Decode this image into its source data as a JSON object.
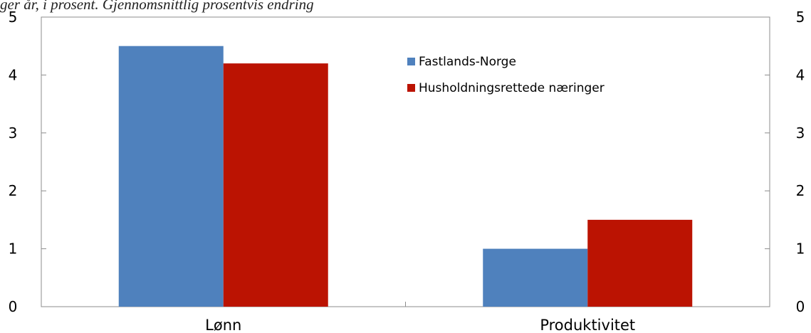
{
  "caption": "ger år, i prosent. Gjennomsnittlig prosentvis endring",
  "colors": {
    "series1": "#4f81bd",
    "series2": "#bb1302",
    "axis": "#8c8c8c"
  },
  "chart_data": {
    "type": "bar",
    "title": "",
    "xlabel": "",
    "ylabel": "",
    "categories": [
      "Lønn",
      "Produktivitet"
    ],
    "series": [
      {
        "name": "Fastlands-Norge",
        "values": [
          4.5,
          1.0
        ]
      },
      {
        "name": "Husholdningsrettede næringer",
        "values": [
          4.2,
          1.5
        ]
      }
    ],
    "ylim": [
      0,
      5
    ],
    "yticks": [
      0,
      1,
      2,
      3,
      4,
      5
    ],
    "ytick_labels": [
      "0",
      "1",
      "2",
      "3",
      "4",
      "5"
    ],
    "secondary_axis": true,
    "legend_position": "top-center",
    "grid": false
  }
}
